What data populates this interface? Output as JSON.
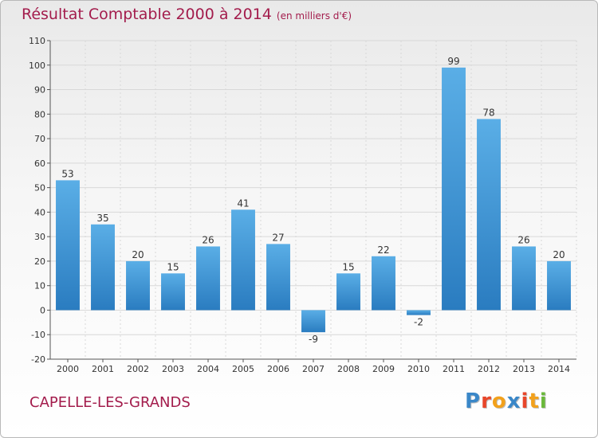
{
  "header": {
    "title": "Résultat Comptable 2000 à 2014",
    "unit": "(en milliers d'€)"
  },
  "footer": {
    "commune": "CAPELLE-LES-GRANDS",
    "logo_letters": [
      "P",
      "r",
      "o",
      "x",
      "i",
      "t",
      "i"
    ],
    "logo_text": "Proxiti"
  },
  "colors": {
    "title": "#a31c4c",
    "bar_light": "#5aaee6",
    "bar_dark": "#2a7cc0",
    "grid": "#d8d8d8",
    "logo": [
      "#3a87c8",
      "#e8462a",
      "#f2a11c",
      "#3a87c8",
      "#e8462a",
      "#f2a11c",
      "#6ab83a"
    ]
  },
  "chart_data": {
    "type": "bar",
    "title": "Résultat Comptable 2000 à 2014",
    "subtitle": "(en milliers d'€)",
    "xlabel": "",
    "ylabel": "",
    "categories": [
      "2000",
      "2001",
      "2002",
      "2003",
      "2004",
      "2005",
      "2006",
      "2007",
      "2008",
      "2009",
      "2010",
      "2011",
      "2012",
      "2013",
      "2014"
    ],
    "values": [
      53,
      35,
      20,
      15,
      26,
      41,
      27,
      -9,
      15,
      22,
      -2,
      99,
      78,
      26,
      20
    ],
    "value_labels": [
      "53",
      "35",
      "20",
      "15",
      "26",
      "41",
      "27",
      "-9",
      "15",
      "22",
      "-2",
      "99",
      "78",
      "26",
      "20"
    ],
    "ylim": [
      -20,
      110
    ],
    "yticks": [
      -20,
      -10,
      0,
      10,
      20,
      30,
      40,
      50,
      60,
      70,
      80,
      90,
      100,
      110
    ],
    "ytick_labels": [
      "-20",
      "-10",
      "0",
      "10",
      "20",
      "30",
      "40",
      "50",
      "60",
      "70",
      "80",
      "90",
      "100",
      "110"
    ],
    "grid": true,
    "legend": "none"
  }
}
